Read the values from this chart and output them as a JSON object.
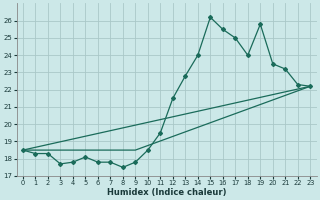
{
  "xlabel": "Humidex (Indice chaleur)",
  "bg_color": "#cce8e8",
  "grid_color": "#aac8c8",
  "line_color": "#1a6b5a",
  "xlim": [
    -0.5,
    23.5
  ],
  "ylim": [
    17,
    27
  ],
  "xtick_labels": [
    "0",
    "1",
    "2",
    "3",
    "4",
    "5",
    "6",
    "7",
    "8",
    "9",
    "10",
    "11",
    "12",
    "13",
    "14",
    "15",
    "16",
    "17",
    "18",
    "19",
    "20",
    "21",
    "22",
    "23"
  ],
  "xtick_vals": [
    0,
    1,
    2,
    3,
    4,
    5,
    6,
    7,
    8,
    9,
    10,
    11,
    12,
    13,
    14,
    15,
    16,
    17,
    18,
    19,
    20,
    21,
    22,
    23
  ],
  "yticks": [
    17,
    18,
    19,
    20,
    21,
    22,
    23,
    24,
    25,
    26
  ],
  "series1_x": [
    0,
    1,
    2,
    3,
    4,
    5,
    6,
    7,
    8,
    9,
    10,
    11,
    12,
    13,
    14,
    15,
    16,
    17,
    18,
    19,
    20,
    21,
    22,
    23
  ],
  "series1_y": [
    18.5,
    18.3,
    18.3,
    17.7,
    17.8,
    18.1,
    17.8,
    17.8,
    17.5,
    17.8,
    18.5,
    19.5,
    21.5,
    22.8,
    24.0,
    26.2,
    25.5,
    25.0,
    24.0,
    25.8,
    23.5,
    23.2,
    22.3,
    22.2
  ],
  "series2_x": [
    0,
    23
  ],
  "series2_y": [
    18.5,
    22.2
  ],
  "series3_x": [
    0,
    9,
    23
  ],
  "series3_y": [
    18.5,
    18.5,
    22.2
  ]
}
